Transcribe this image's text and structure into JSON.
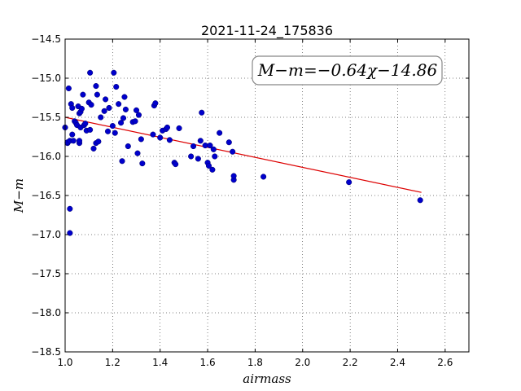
{
  "chart_data": {
    "type": "scatter",
    "title": "2021-11-24_175836",
    "xlabel": "airmass",
    "ylabel": "M−m",
    "xlim": [
      1.0,
      2.7
    ],
    "ylim": [
      -18.5,
      -14.5
    ],
    "xticks": [
      "1.0",
      "1.2",
      "1.4",
      "1.6",
      "1.8",
      "2.0",
      "2.2",
      "2.4",
      "2.6"
    ],
    "yticks": [
      "−14.5",
      "−15.0",
      "−15.5",
      "−16.0",
      "−16.5",
      "−17.0",
      "−17.5",
      "−18.0",
      "−18.5"
    ],
    "grid": true,
    "annotation": "M−m=−0.64χ−14.86",
    "fit": {
      "slope": -0.64,
      "intercept": -14.86,
      "x_range": [
        1.0,
        2.5
      ],
      "color": "#dd0000"
    },
    "series": [
      {
        "color": "#0000cc",
        "points": [
          [
            1.0,
            -15.63
          ],
          [
            1.01,
            -15.83
          ],
          [
            1.01,
            -15.82
          ],
          [
            1.015,
            -15.13
          ],
          [
            1.02,
            -15.8
          ],
          [
            1.02,
            -16.67
          ],
          [
            1.02,
            -16.98
          ],
          [
            1.025,
            -15.33
          ],
          [
            1.03,
            -15.38
          ],
          [
            1.03,
            -15.72
          ],
          [
            1.035,
            -15.8
          ],
          [
            1.04,
            -15.55
          ],
          [
            1.045,
            -15.57
          ],
          [
            1.05,
            -15.6
          ],
          [
            1.055,
            -15.36
          ],
          [
            1.06,
            -15.45
          ],
          [
            1.06,
            -15.83
          ],
          [
            1.06,
            -15.8
          ],
          [
            1.065,
            -15.63
          ],
          [
            1.065,
            -15.43
          ],
          [
            1.07,
            -15.39
          ],
          [
            1.075,
            -15.21
          ],
          [
            1.08,
            -15.6
          ],
          [
            1.085,
            -15.58
          ],
          [
            1.09,
            -15.67
          ],
          [
            1.1,
            -15.31
          ],
          [
            1.105,
            -15.66
          ],
          [
            1.105,
            -14.93
          ],
          [
            1.11,
            -15.34
          ],
          [
            1.12,
            -15.9
          ],
          [
            1.13,
            -15.83
          ],
          [
            1.13,
            -15.1
          ],
          [
            1.135,
            -15.21
          ],
          [
            1.14,
            -15.81
          ],
          [
            1.15,
            -15.5
          ],
          [
            1.165,
            -15.42
          ],
          [
            1.17,
            -15.27
          ],
          [
            1.18,
            -15.68
          ],
          [
            1.185,
            -15.38
          ],
          [
            1.2,
            -15.61
          ],
          [
            1.205,
            -14.93
          ],
          [
            1.21,
            -15.7
          ],
          [
            1.215,
            -15.11
          ],
          [
            1.225,
            -15.33
          ],
          [
            1.235,
            -15.57
          ],
          [
            1.24,
            -16.06
          ],
          [
            1.245,
            -15.51
          ],
          [
            1.25,
            -15.24
          ],
          [
            1.255,
            -15.4
          ],
          [
            1.265,
            -15.87
          ],
          [
            1.285,
            -15.56
          ],
          [
            1.295,
            -15.55
          ],
          [
            1.3,
            -15.41
          ],
          [
            1.305,
            -15.96
          ],
          [
            1.31,
            -15.47
          ],
          [
            1.325,
            -16.09
          ],
          [
            1.32,
            -15.78
          ],
          [
            1.37,
            -15.72
          ],
          [
            1.375,
            -15.35
          ],
          [
            1.38,
            -15.32
          ],
          [
            1.4,
            -15.76
          ],
          [
            1.41,
            -15.67
          ],
          [
            1.425,
            -15.65
          ],
          [
            1.43,
            -15.63
          ],
          [
            1.44,
            -15.79
          ],
          [
            1.46,
            -16.08
          ],
          [
            1.465,
            -16.1
          ],
          [
            1.48,
            -15.64
          ],
          [
            1.53,
            -16.0
          ],
          [
            1.54,
            -15.87
          ],
          [
            1.56,
            -16.03
          ],
          [
            1.57,
            -15.8
          ],
          [
            1.575,
            -15.44
          ],
          [
            1.59,
            -15.86
          ],
          [
            1.6,
            -16.08
          ],
          [
            1.605,
            -16.12
          ],
          [
            1.61,
            -15.86
          ],
          [
            1.62,
            -16.17
          ],
          [
            1.625,
            -15.91
          ],
          [
            1.63,
            -16.0
          ],
          [
            1.65,
            -15.7
          ],
          [
            1.69,
            -15.82
          ],
          [
            1.705,
            -15.94
          ],
          [
            1.71,
            -16.3
          ],
          [
            1.71,
            -16.25
          ],
          [
            1.835,
            -16.26
          ],
          [
            2.195,
            -16.33
          ],
          [
            2.495,
            -16.56
          ]
        ]
      }
    ]
  }
}
